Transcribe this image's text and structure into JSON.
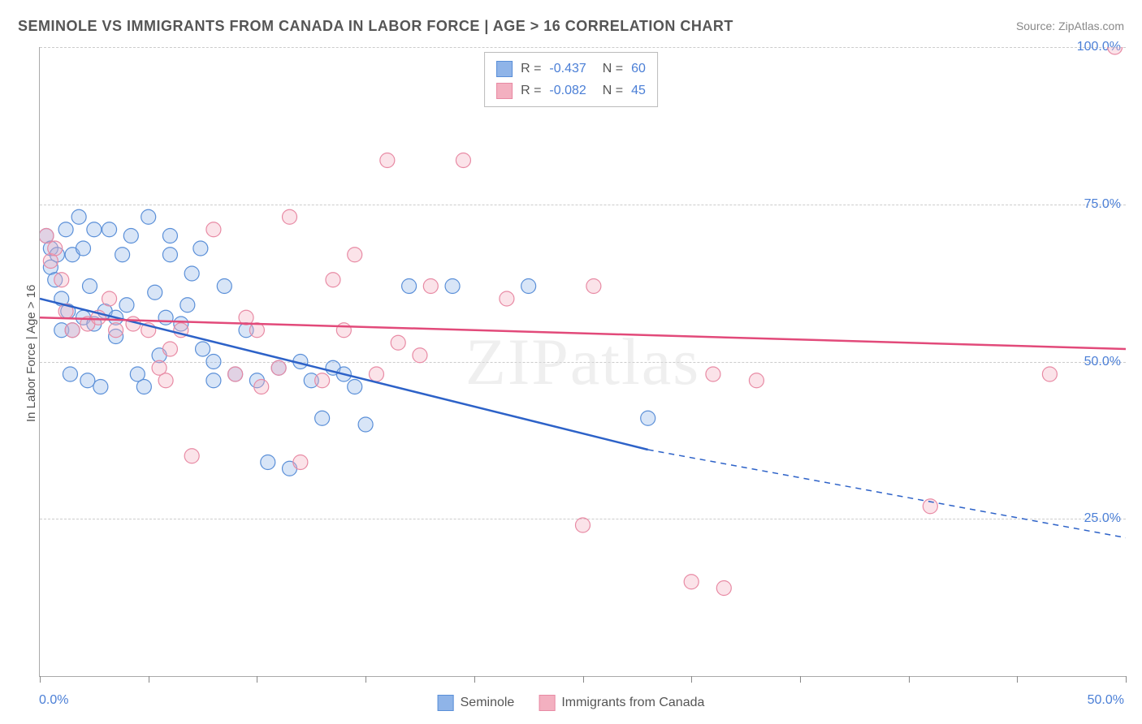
{
  "title": "SEMINOLE VS IMMIGRANTS FROM CANADA IN LABOR FORCE | AGE > 16 CORRELATION CHART",
  "source": "Source: ZipAtlas.com",
  "y_axis_label": "In Labor Force | Age > 16",
  "watermark": "ZIPatlas",
  "chart": {
    "type": "scatter",
    "xlim": [
      0,
      50
    ],
    "ylim": [
      0,
      100
    ],
    "x_ticks": [
      0,
      5,
      10,
      15,
      20,
      25,
      30,
      35,
      40,
      45,
      50
    ],
    "y_ticks": [
      25,
      50,
      75,
      100
    ],
    "x_tick_labels": {
      "0": "0.0%",
      "50": "50.0%"
    },
    "y_tick_labels": {
      "25": "25.0%",
      "50": "50.0%",
      "75": "75.0%",
      "100": "100.0%"
    },
    "grid_color": "#cccccc",
    "axis_color": "#aaaaaa",
    "tick_label_color": "#4b7fd6",
    "background_color": "#ffffff",
    "marker_radius": 9,
    "marker_fill_opacity": 0.35,
    "marker_stroke_width": 1.2,
    "trend_line_width": 2.5,
    "series": [
      {
        "name": "Seminole",
        "color_fill": "#8fb4e8",
        "color_stroke": "#5a8fd8",
        "trend_color": "#2d62c8",
        "R": -0.437,
        "N": 60,
        "trend": {
          "x1": 0,
          "y1": 60,
          "x2": 28,
          "y2": 36,
          "ext_x2": 50,
          "ext_y2": 22
        },
        "points": [
          [
            0.3,
            70
          ],
          [
            0.5,
            65
          ],
          [
            0.5,
            68
          ],
          [
            0.7,
            63
          ],
          [
            0.8,
            67
          ],
          [
            1.0,
            55
          ],
          [
            1.0,
            60
          ],
          [
            1.2,
            71
          ],
          [
            1.3,
            58
          ],
          [
            1.4,
            48
          ],
          [
            1.5,
            67
          ],
          [
            1.5,
            55
          ],
          [
            1.8,
            73
          ],
          [
            2.0,
            57
          ],
          [
            2.0,
            68
          ],
          [
            2.2,
            47
          ],
          [
            2.3,
            62
          ],
          [
            2.5,
            56
          ],
          [
            2.5,
            71
          ],
          [
            2.8,
            46
          ],
          [
            3.0,
            58
          ],
          [
            3.2,
            71
          ],
          [
            3.5,
            57
          ],
          [
            3.5,
            54
          ],
          [
            3.8,
            67
          ],
          [
            4.0,
            59
          ],
          [
            4.2,
            70
          ],
          [
            4.5,
            48
          ],
          [
            4.8,
            46
          ],
          [
            5.0,
            73
          ],
          [
            5.3,
            61
          ],
          [
            5.5,
            51
          ],
          [
            5.8,
            57
          ],
          [
            6.0,
            67
          ],
          [
            6.0,
            70
          ],
          [
            6.5,
            56
          ],
          [
            6.8,
            59
          ],
          [
            7.0,
            64
          ],
          [
            7.4,
            68
          ],
          [
            7.5,
            52
          ],
          [
            8.0,
            50
          ],
          [
            8.0,
            47
          ],
          [
            8.5,
            62
          ],
          [
            9.0,
            48
          ],
          [
            9.5,
            55
          ],
          [
            10.0,
            47
          ],
          [
            10.5,
            34
          ],
          [
            11.0,
            49
          ],
          [
            11.5,
            33
          ],
          [
            12.0,
            50
          ],
          [
            12.5,
            47
          ],
          [
            13.0,
            41
          ],
          [
            13.5,
            49
          ],
          [
            14.0,
            48
          ],
          [
            14.5,
            46
          ],
          [
            15.0,
            40
          ],
          [
            17.0,
            62
          ],
          [
            19.0,
            62
          ],
          [
            22.5,
            62
          ],
          [
            28.0,
            41
          ]
        ]
      },
      {
        "name": "Immigrants from Canada",
        "color_fill": "#f3b0c0",
        "color_stroke": "#e88aa4",
        "trend_color": "#e24a7a",
        "R": -0.082,
        "N": 45,
        "trend": {
          "x1": 0,
          "y1": 57,
          "x2": 50,
          "y2": 52
        },
        "points": [
          [
            0.3,
            70
          ],
          [
            0.5,
            66
          ],
          [
            0.7,
            68
          ],
          [
            1.0,
            63
          ],
          [
            1.2,
            58
          ],
          [
            1.5,
            55
          ],
          [
            2.2,
            56
          ],
          [
            2.7,
            57
          ],
          [
            3.2,
            60
          ],
          [
            3.5,
            55
          ],
          [
            4.3,
            56
          ],
          [
            5.0,
            55
          ],
          [
            5.5,
            49
          ],
          [
            5.8,
            47
          ],
          [
            6.0,
            52
          ],
          [
            6.5,
            55
          ],
          [
            7.0,
            35
          ],
          [
            8.0,
            71
          ],
          [
            9.0,
            48
          ],
          [
            9.5,
            57
          ],
          [
            10.0,
            55
          ],
          [
            10.2,
            46
          ],
          [
            11.0,
            49
          ],
          [
            11.5,
            73
          ],
          [
            12.0,
            34
          ],
          [
            13.0,
            47
          ],
          [
            13.5,
            63
          ],
          [
            14.0,
            55
          ],
          [
            14.5,
            67
          ],
          [
            15.5,
            48
          ],
          [
            16.0,
            82
          ],
          [
            16.5,
            53
          ],
          [
            17.5,
            51
          ],
          [
            18.0,
            62
          ],
          [
            19.5,
            82
          ],
          [
            21.5,
            60
          ],
          [
            25.0,
            24
          ],
          [
            25.5,
            62
          ],
          [
            30.0,
            15
          ],
          [
            31.0,
            48
          ],
          [
            31.5,
            14
          ],
          [
            33.0,
            47
          ],
          [
            41.0,
            27
          ],
          [
            46.5,
            48
          ],
          [
            49.5,
            100
          ]
        ]
      }
    ]
  },
  "legend_bottom": [
    {
      "label": "Seminole",
      "fill": "#8fb4e8",
      "stroke": "#5a8fd8"
    },
    {
      "label": "Immigrants from Canada",
      "fill": "#f3b0c0",
      "stroke": "#e88aa4"
    }
  ]
}
